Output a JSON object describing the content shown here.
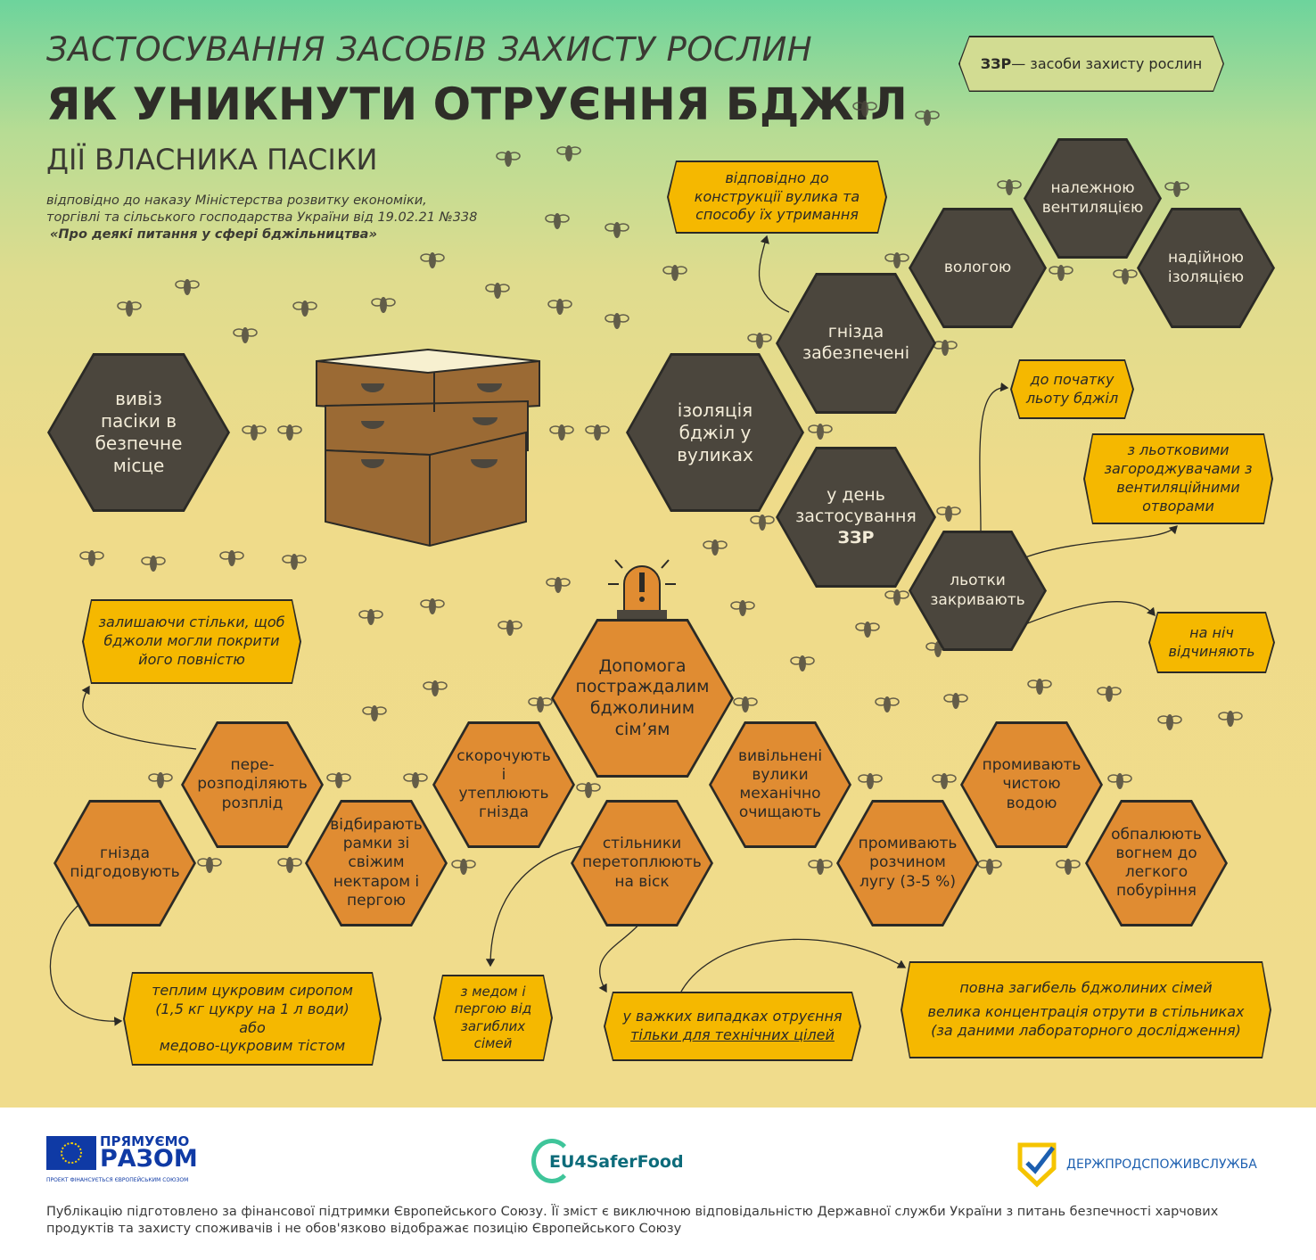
{
  "header": {
    "title_line1": "ЗАСТОСУВАННЯ ЗАСОБІВ ЗАХИСТУ РОСЛИН",
    "title_line2": "ЯК УНИКНУТИ ОТРУЄННЯ БДЖІЛ",
    "subtitle": "ДІЇ ВЛАСНИКА ПАСІКИ",
    "ref_line1": "відповідно до наказу Міністерства розвитку економіки,",
    "ref_line2": "торгівлі та сільського господарства України від 19.02.21 №338",
    "ref_line3": "«Про деякі питання у сфері бджільництва»",
    "badge_abbr": "ЗЗР",
    "badge_text": " — засоби захисту рослин"
  },
  "dark_hexes": {
    "relocate": "вивіз пасіки в безпечне місце",
    "isolation": "ізоляція бджіл у вуликах",
    "nests": "гнізда забезпечені",
    "day": "у день застосування",
    "day_b": "ЗЗР",
    "moisture": "вологою",
    "ventilation": "належною вентиляцією",
    "insulation": "надійною ізоляцією",
    "entrances": "льотки закривають"
  },
  "orange_hexes": {
    "help": "Допомога постраждалим бджолиним сім’ям",
    "redistribute": "пере-розподіляють розплід",
    "shorten": "скорочують і утеплюють гнізда",
    "freed": "вивільнені вулики механічно очищають",
    "rinse_water": "промивають чистою водою",
    "feed": "гнізда підгодовують",
    "select": "відбирають рамки зі свіжим нектаром і пергою",
    "melt": "стільники перетоплюють на віск",
    "rinse_lye": "промивають розчином лугу (3-5 %)",
    "burn": "обпалюють вогнем до легкого побуріння"
  },
  "callouts": {
    "construction": "відповідно до конструкції вулика та способу їх утримання",
    "before_flight": "до початку льоту бджіл",
    "barriers": "з льотковими загороджувачами з вентиляційними отворами",
    "night": "на ніч відчиняють",
    "leaving": "залишаючи стільки, щоб бджоли могли покрити його повністю",
    "syrup_1": "теплим цукровим сиропом",
    "syrup_2": "(1,5 кг цукру на 1 л води)",
    "syrup_3": "або",
    "syrup_4": "медово-цукровим тістом",
    "honey": "з медом і пергою від загиблих сімей",
    "severe_1": "у важких випадках отруєння",
    "severe_2": "тільки для технічних цілей",
    "death_1": "повна загибель бджолиних сімей",
    "death_2": "велика концентрація отрути в стільниках",
    "death_3": "(за даними лабораторного дослідження)"
  },
  "footer": {
    "eu_logo_1": "ПРЯМУЄМО",
    "eu_logo_2": "РАЗОМ",
    "eu_logo_3": "ПРОЕКТ ФІНАНСУЄТЬСЯ ЄВРОПЕЙСЬКИМ СОЮЗОМ",
    "eu4_logo": "EU4SaferFood",
    "dps_logo": "ДЕРЖПРОДСПОЖИВСЛУЖБА",
    "disclaimer": "Публікацію підготовлено за фінансової підтримки Європейського Союзу. Її зміст є виключною відповідальністю Державної служби України з питань безпечності харчових продуктів та захисту споживачів і не обов'язково відображає позицію Європейського Союзу"
  },
  "colors": {
    "dark_hex": "#4b463d",
    "orange_hex": "#e08c32",
    "callout": "#f5b800",
    "outline": "#2b2a26"
  }
}
